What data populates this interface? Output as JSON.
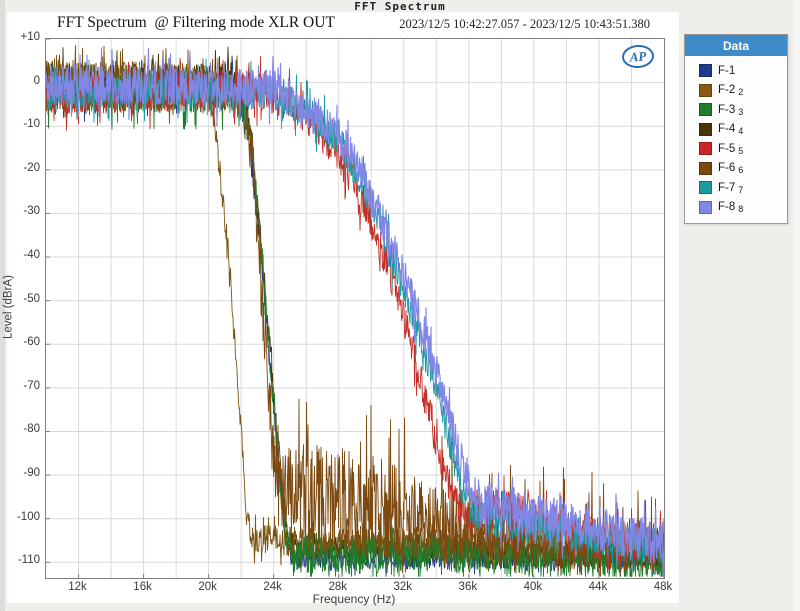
{
  "window_title": "FFT Spectrum",
  "header": {
    "title": "FFT Spectrum  @ Filtering mode XLR OUT",
    "timestamp": "2023/12/5 10:42:27.057 - 2023/12/5 10:43:51.380"
  },
  "logo": {
    "text": "AP"
  },
  "legend": {
    "header": "Data",
    "items": [
      {
        "label": "F-1",
        "sub": "",
        "color": "#203a8c"
      },
      {
        "label": "F-2",
        "sub": "2",
        "color": "#8a5a14"
      },
      {
        "label": "F-3",
        "sub": "3",
        "color": "#1f7d2c"
      },
      {
        "label": "F-4",
        "sub": "4",
        "color": "#4a3408"
      },
      {
        "label": "F-5",
        "sub": "5",
        "color": "#cc2428"
      },
      {
        "label": "F-6",
        "sub": "6",
        "color": "#7c4a10"
      },
      {
        "label": "F-7",
        "sub": "7",
        "color": "#1d9aa0"
      },
      {
        "label": "F-8",
        "sub": "8",
        "color": "#8287e6"
      }
    ]
  },
  "chart_data": {
    "type": "line",
    "title": "FFT Spectrum @ Filtering mode XLR OUT",
    "xlabel": "Frequency (Hz)",
    "ylabel": "Level (dBrA)",
    "x_scale": "linear",
    "x_range_hz": [
      10000,
      48000
    ],
    "y_range_db": [
      10,
      -113.6
    ],
    "x_minor_step_hz": 2000,
    "y_step_db": 10,
    "grid": true,
    "legend_position": "right",
    "grid_color": "#d9d9d9",
    "x_ticks": [
      {
        "hz": 12000,
        "label": "12k"
      },
      {
        "hz": 16000,
        "label": "16k"
      },
      {
        "hz": 20000,
        "label": "20k"
      },
      {
        "hz": 24000,
        "label": "24k"
      },
      {
        "hz": 28000,
        "label": "28k"
      },
      {
        "hz": 32000,
        "label": "32k"
      },
      {
        "hz": 36000,
        "label": "36k"
      },
      {
        "hz": 40000,
        "label": "40k"
      },
      {
        "hz": 44000,
        "label": "44k"
      },
      {
        "hz": 48000,
        "label": "48k"
      }
    ],
    "y_ticks": [
      {
        "db": 10,
        "label": "+10"
      },
      {
        "db": 0,
        "label": "0"
      },
      {
        "db": -10,
        "label": "-10"
      },
      {
        "db": -20,
        "label": "-20"
      },
      {
        "db": -30,
        "label": "-30"
      },
      {
        "db": -40,
        "label": "-40"
      },
      {
        "db": -50,
        "label": "-50"
      },
      {
        "db": -60,
        "label": "-60"
      },
      {
        "db": -70,
        "label": "-70"
      },
      {
        "db": -80,
        "label": "-80"
      },
      {
        "db": -90,
        "label": "-90"
      },
      {
        "db": -100,
        "label": "-100"
      },
      {
        "db": -110,
        "label": "-110"
      }
    ],
    "series_note": "Noisy FFT spectra of 8 filter modes; envelope_khz_db are centerline control points [kHz,dB], noise_khz_db are peak noise amplitudes [kHz,dB]; drawn in listed order (last on top).",
    "series": [
      {
        "name": "F-1",
        "color": "#203a8c",
        "stroke_width": 0.9,
        "seed": 101,
        "spike_bias": 0,
        "envelope_khz_db": [
          [
            10,
            -1.5
          ],
          [
            21.6,
            -1.5
          ],
          [
            22.4,
            -10
          ],
          [
            23.2,
            -38
          ],
          [
            24.0,
            -74
          ],
          [
            24.7,
            -104
          ],
          [
            25.1,
            -109
          ],
          [
            48,
            -110
          ]
        ],
        "noise_khz_db": [
          [
            10,
            4.5
          ],
          [
            22,
            4
          ],
          [
            25,
            2
          ],
          [
            48,
            2
          ]
        ]
      },
      {
        "name": "F-4",
        "color": "#4a3408",
        "stroke_width": 0.9,
        "seed": 104,
        "spike_bias": 0.3,
        "envelope_khz_db": [
          [
            10,
            1.5
          ],
          [
            21.7,
            1.5
          ],
          [
            22.5,
            -10
          ],
          [
            23.3,
            -40
          ],
          [
            24.1,
            -76
          ],
          [
            24.8,
            -103
          ],
          [
            25.2,
            -107
          ],
          [
            48,
            -108
          ]
        ],
        "noise_khz_db": [
          [
            10,
            3.5
          ],
          [
            21,
            3.5
          ],
          [
            25,
            3
          ],
          [
            48,
            3
          ]
        ]
      },
      {
        "name": "F-2",
        "color": "#7a5510",
        "stroke_width": 0.9,
        "seed": 102,
        "spike_bias": 0.2,
        "envelope_khz_db": [
          [
            10,
            1.5
          ],
          [
            19.7,
            1.5
          ],
          [
            20.4,
            -10
          ],
          [
            21.1,
            -35
          ],
          [
            21.8,
            -68
          ],
          [
            22.3,
            -98
          ],
          [
            22.6,
            -104
          ],
          [
            26,
            -105
          ],
          [
            48,
            -107
          ]
        ],
        "noise_khz_db": [
          [
            10,
            3.5
          ],
          [
            20,
            3
          ],
          [
            22.5,
            3
          ],
          [
            23,
            3.5
          ],
          [
            48,
            3.5
          ]
        ]
      },
      {
        "name": "F-3",
        "color": "#1f7d2c",
        "stroke_width": 0.9,
        "seed": 103,
        "spike_bias": -0.5,
        "envelope_khz_db": [
          [
            10,
            -2.5
          ],
          [
            21.9,
            -2.5
          ],
          [
            22.7,
            -14
          ],
          [
            23.4,
            -45
          ],
          [
            24.1,
            -78
          ],
          [
            24.7,
            -104
          ],
          [
            25.1,
            -108
          ],
          [
            48,
            -110
          ]
        ],
        "noise_khz_db": [
          [
            10,
            4
          ],
          [
            22,
            4
          ],
          [
            25,
            3
          ],
          [
            25.5,
            4.5
          ],
          [
            48,
            4
          ]
        ]
      },
      {
        "name": "F-6",
        "color": "#7c4a10",
        "stroke_width": 0.9,
        "seed": 106,
        "spike_bias": 0.9,
        "envelope_khz_db": [
          [
            10,
            -3
          ],
          [
            21.9,
            -3
          ],
          [
            22.7,
            -18
          ],
          [
            23.3,
            -52
          ],
          [
            23.9,
            -82
          ],
          [
            24.3,
            -94
          ],
          [
            26,
            -95
          ],
          [
            29,
            -96
          ],
          [
            32,
            -98
          ],
          [
            34,
            -100
          ],
          [
            36,
            -102
          ],
          [
            40,
            -104
          ],
          [
            44,
            -106
          ],
          [
            48,
            -107
          ]
        ],
        "noise_khz_db": [
          [
            10,
            4
          ],
          [
            22,
            4
          ],
          [
            24.3,
            9
          ],
          [
            26,
            12
          ],
          [
            30,
            12
          ],
          [
            33,
            10
          ],
          [
            36,
            8
          ],
          [
            40,
            7
          ],
          [
            48,
            6
          ]
        ]
      },
      {
        "name": "F-5",
        "color": "#c33028",
        "stroke_width": 0.9,
        "seed": 105,
        "spike_bias": 0,
        "envelope_khz_db": [
          [
            10,
            -2
          ],
          [
            23,
            -2
          ],
          [
            25,
            -5
          ],
          [
            26.5,
            -10
          ],
          [
            28,
            -17
          ],
          [
            29.5,
            -28
          ],
          [
            31,
            -42
          ],
          [
            32.3,
            -58
          ],
          [
            33.5,
            -75
          ],
          [
            34.5,
            -89
          ],
          [
            35.2,
            -96
          ],
          [
            36,
            -99
          ],
          [
            37.5,
            -97
          ],
          [
            39.5,
            -98
          ],
          [
            41,
            -101
          ],
          [
            44,
            -104
          ],
          [
            48,
            -106
          ]
        ],
        "noise_khz_db": [
          [
            10,
            4.5
          ],
          [
            25,
            4.5
          ],
          [
            33,
            4
          ],
          [
            35.5,
            4
          ],
          [
            37.5,
            5
          ],
          [
            41,
            5
          ],
          [
            48,
            4.5
          ]
        ]
      },
      {
        "name": "F-7",
        "color": "#1d9aa0",
        "stroke_width": 0.9,
        "seed": 107,
        "spike_bias": 0,
        "envelope_khz_db": [
          [
            10,
            -2.5
          ],
          [
            24,
            -2.5
          ],
          [
            26,
            -6
          ],
          [
            28,
            -13
          ],
          [
            29.5,
            -23
          ],
          [
            31,
            -36
          ],
          [
            32.5,
            -52
          ],
          [
            34,
            -70
          ],
          [
            35.3,
            -89
          ],
          [
            36.2,
            -98
          ],
          [
            37.5,
            -100
          ],
          [
            40,
            -102
          ],
          [
            44,
            -105
          ],
          [
            48,
            -107
          ]
        ],
        "noise_khz_db": [
          [
            10,
            4
          ],
          [
            30,
            4
          ],
          [
            36.5,
            4
          ],
          [
            48,
            4
          ]
        ]
      },
      {
        "name": "F-8",
        "color": "#8287e6",
        "stroke_width": 1.15,
        "seed": 108,
        "spike_bias": 0,
        "envelope_khz_db": [
          [
            10,
            -1
          ],
          [
            24,
            -1
          ],
          [
            26,
            -5
          ],
          [
            28,
            -12
          ],
          [
            29.5,
            -21
          ],
          [
            31,
            -34
          ],
          [
            32.5,
            -49
          ],
          [
            34,
            -67
          ],
          [
            35.4,
            -86
          ],
          [
            36.4,
            -96
          ],
          [
            38,
            -98
          ],
          [
            40,
            -100
          ],
          [
            44,
            -103
          ],
          [
            48,
            -106
          ]
        ],
        "noise_khz_db": [
          [
            10,
            4.5
          ],
          [
            30,
            4.5
          ],
          [
            36.5,
            5
          ],
          [
            48,
            5
          ]
        ]
      }
    ]
  }
}
